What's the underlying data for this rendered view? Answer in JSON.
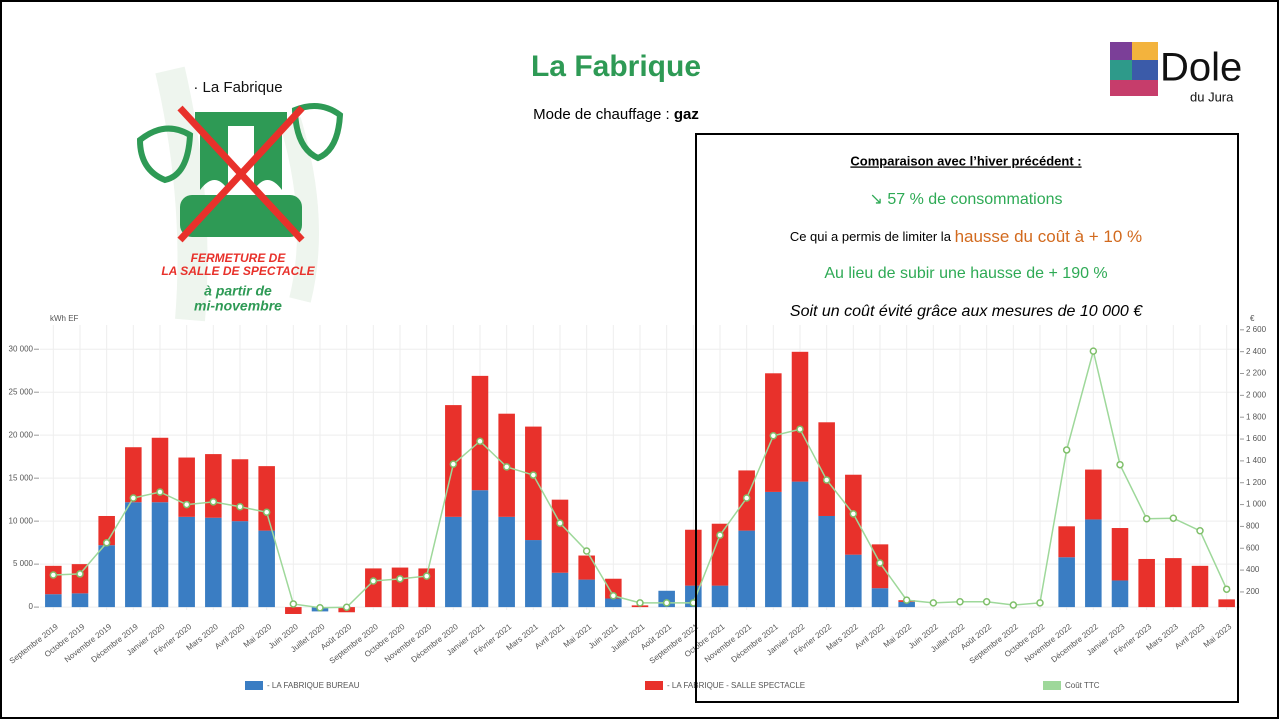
{
  "header": {
    "title": "La Fabrique",
    "heating_label": "Mode de chauffage :",
    "heating_value": "gaz",
    "brand": "Dole",
    "brand_sub": "du Jura"
  },
  "poster": {
    "name": "· La Fabrique",
    "line1": "FERMETURE DE",
    "line2": "LA SALLE DE SPECTACLE",
    "line3": "à partir de",
    "line4": "mi-novembre"
  },
  "comparison": {
    "heading": "Comparaison avec l’hiver précédent :",
    "consumption": "↘ 57 % de consommations",
    "limit_text": "Ce qui a permis de limiter la",
    "limit_value": "hausse du coût à + 10 %",
    "instead": "Au lieu de subir une hausse de + 190 %",
    "avoided": "Soit un coût évité grâce aux mesures de 10 000 €"
  },
  "chart_data": {
    "type": "bar",
    "stacked": true,
    "ylabel": "kWh EF",
    "y2label": "€",
    "grid": true,
    "categories": [
      "Septembre 2019",
      "Octobre 2019",
      "Novembre 2019",
      "Décembre 2019",
      "Janvier 2020",
      "Février 2020",
      "Mars 2020",
      "Avril 2020",
      "Mai 2020",
      "Juin 2020",
      "Juillet 2020",
      "Août 2020",
      "Septembre 2020",
      "Octobre 2020",
      "Novembre 2020",
      "Décembre 2020",
      "Janvier 2021",
      "Février 2021",
      "Mars 2021",
      "Avril 2021",
      "Mai 2021",
      "Juin 2021",
      "Juillet 2021",
      "Août 2021",
      "Septembre 2021",
      "Octobre 2021",
      "Novembre 2021",
      "Décembre 2021",
      "Janvier 2022",
      "Février 2022",
      "Mars 2022",
      "Avril 2022",
      "Mai 2022",
      "Juin 2022",
      "Juillet 2022",
      "Août 2022",
      "Septembre 2022",
      "Octobre 2022",
      "Novembre 2022",
      "Décembre 2022",
      "Janvier 2023",
      "Février 2023",
      "Mars 2023",
      "Avril 2023",
      "Mai 2023"
    ],
    "series": [
      {
        "name": "- LA FABRIQUE BUREAU",
        "type": "bar",
        "color": "#3a7dc3",
        "values": [
          1500,
          1600,
          7200,
          12200,
          12200,
          10500,
          10400,
          10000,
          8900,
          0,
          -500,
          0,
          0,
          0,
          0,
          10500,
          13600,
          10500,
          7800,
          4000,
          3200,
          1000,
          0,
          1900,
          2500,
          2500,
          8900,
          13400,
          14600,
          10600,
          6100,
          2200,
          600,
          0,
          0,
          0,
          0,
          0,
          5800,
          10200,
          3100,
          0,
          0,
          0,
          0
        ]
      },
      {
        "name": "- LA FABRIQUE - SALLE SPECTACLE",
        "type": "bar",
        "color": "#e8312b",
        "values": [
          3300,
          3400,
          3400,
          6400,
          7500,
          6900,
          7400,
          7200,
          7500,
          -800,
          0,
          -600,
          4500,
          4600,
          4500,
          13000,
          13300,
          12000,
          13200,
          8500,
          2800,
          2300,
          200,
          0,
          6500,
          7200,
          7000,
          13800,
          15100,
          10900,
          9300,
          5100,
          200,
          0,
          0,
          0,
          0,
          0,
          3600,
          5800,
          6100,
          5600,
          5700,
          4800,
          900
        ]
      },
      {
        "name": "Coût TTC",
        "type": "line",
        "axis": "y2",
        "color": "#9ed89a",
        "values": [
          355,
          365,
          650,
          1060,
          1115,
          1000,
          1025,
          980,
          930,
          90,
          55,
          60,
          300,
          320,
          345,
          1370,
          1580,
          1345,
          1270,
          830,
          575,
          165,
          100,
          100,
          100,
          720,
          1060,
          1630,
          1690,
          1225,
          915,
          465,
          125,
          100,
          110,
          110,
          80,
          100,
          1500,
          2405,
          1365,
          870,
          875,
          760,
          225
        ]
      }
    ],
    "ylim": [
      -1500,
      33400
    ],
    "yticks": [
      0,
      {
        "value": 5000,
        "label": "5 000"
      },
      {
        "value": 10000,
        "label": "10 000"
      },
      {
        "value": 15000,
        "label": "15 000"
      },
      {
        "value": 20000,
        "label": "20 000"
      },
      {
        "value": 25000,
        "label": "25 000"
      },
      {
        "value": 30000,
        "label": "30 000"
      }
    ],
    "y2lim": [
      -57,
      2690
    ],
    "y2ticks": [
      200,
      400,
      600,
      800,
      {
        "value": 1000,
        "label": "1 000"
      },
      {
        "value": 1200,
        "label": "1 200"
      },
      {
        "value": 1400,
        "label": "1 400"
      },
      {
        "value": 1600,
        "label": "1 600"
      },
      {
        "value": 1800,
        "label": "1 800"
      },
      {
        "value": 2000,
        "label": "2 000"
      },
      {
        "value": 2200,
        "label": "2 200"
      },
      {
        "value": 2400,
        "label": "2 400"
      },
      {
        "value": 2600,
        "label": "2 600"
      }
    ]
  }
}
